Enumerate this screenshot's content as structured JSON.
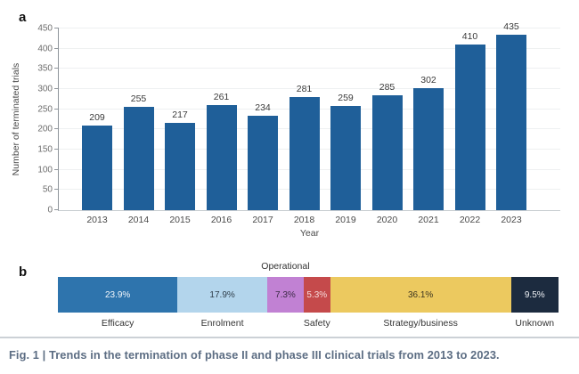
{
  "figure": {
    "panel_a_label": "a",
    "panel_b_label": "b",
    "caption": "Fig. 1 | Trends in the termination of phase II and phase III clinical trials from 2013 to 2023."
  },
  "chart_data": [
    {
      "type": "bar",
      "panel": "a",
      "xlabel": "Year",
      "ylabel": "Number of terminated trials",
      "categories": [
        "2013",
        "2014",
        "2015",
        "2016",
        "2017",
        "2018",
        "2019",
        "2020",
        "2021",
        "2022",
        "2023"
      ],
      "values": [
        209,
        255,
        217,
        261,
        234,
        281,
        259,
        285,
        302,
        410,
        435
      ],
      "ylim": [
        0,
        450
      ],
      "ytick_step": 50,
      "grid": "horizontal-faint",
      "legend": "none",
      "bar_color": "#1f5f99"
    },
    {
      "type": "bar",
      "subtype": "stacked-horizontal-100pct",
      "panel": "b",
      "segments": [
        {
          "label": "Efficacy",
          "value": 23.9,
          "display": "23.9%",
          "color": "#2e74ad",
          "text_color": "#f3f7fb",
          "label_position": "below"
        },
        {
          "label": "Enrolment",
          "value": 17.9,
          "display": "17.9%",
          "color": "#b3d5ec",
          "text_color": "#2f3d49",
          "label_position": "below"
        },
        {
          "label": "Operational",
          "value": 7.3,
          "display": "7.3%",
          "color": "#c181d3",
          "text_color": "#3b2a45",
          "label_position": "above"
        },
        {
          "label": "Safety",
          "value": 5.3,
          "display": "5.3%",
          "color": "#c54a4b",
          "text_color": "#f6dcdc",
          "label_position": "below"
        },
        {
          "label": "Strategy/business",
          "value": 36.1,
          "display": "36.1%",
          "color": "#ecc95f",
          "text_color": "#3d3521",
          "label_position": "below"
        },
        {
          "label": "Unknown",
          "value": 9.5,
          "display": "9.5%",
          "color": "#1c2b3f",
          "text_color": "#eef1f5",
          "label_position": "below"
        }
      ]
    }
  ]
}
